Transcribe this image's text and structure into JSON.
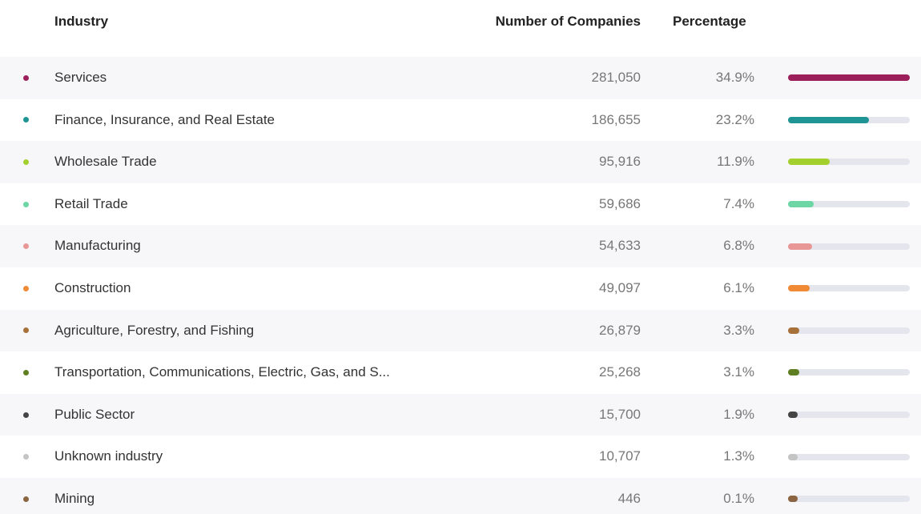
{
  "table": {
    "headers": {
      "industry": "Industry",
      "companies": "Number of Companies",
      "percentage": "Percentage"
    },
    "rows": [
      {
        "industry": "Services",
        "companies": "281,050",
        "percentage": "34.9%",
        "value": 34.9,
        "color": "#9c1f5c"
      },
      {
        "industry": "Finance, Insurance, and Real Estate",
        "companies": "186,655",
        "percentage": "23.2%",
        "value": 23.2,
        "color": "#1f9494"
      },
      {
        "industry": "Wholesale Trade",
        "companies": "95,916",
        "percentage": "11.9%",
        "value": 11.9,
        "color": "#a4d02e"
      },
      {
        "industry": "Retail Trade",
        "companies": "59,686",
        "percentage": "7.4%",
        "value": 7.4,
        "color": "#6dd6a4"
      },
      {
        "industry": "Manufacturing",
        "companies": "54,633",
        "percentage": "6.8%",
        "value": 6.8,
        "color": "#e89696"
      },
      {
        "industry": "Construction",
        "companies": "49,097",
        "percentage": "6.1%",
        "value": 6.1,
        "color": "#f08a35"
      },
      {
        "industry": "Agriculture, Forestry, and Fishing",
        "companies": "26,879",
        "percentage": "3.3%",
        "value": 3.3,
        "color": "#a8713a"
      },
      {
        "industry": "Transportation, Communications, Electric, Gas, and S...",
        "companies": "25,268",
        "percentage": "3.1%",
        "value": 3.1,
        "color": "#5f7f22"
      },
      {
        "industry": "Public Sector",
        "companies": "15,700",
        "percentage": "1.9%",
        "value": 1.9,
        "color": "#444444"
      },
      {
        "industry": "Unknown industry",
        "companies": "10,707",
        "percentage": "1.3%",
        "value": 1.3,
        "color": "#c4c4c4"
      },
      {
        "industry": "Mining",
        "companies": "446",
        "percentage": "0.1%",
        "value": 0.1,
        "color": "#8b6441"
      }
    ]
  }
}
